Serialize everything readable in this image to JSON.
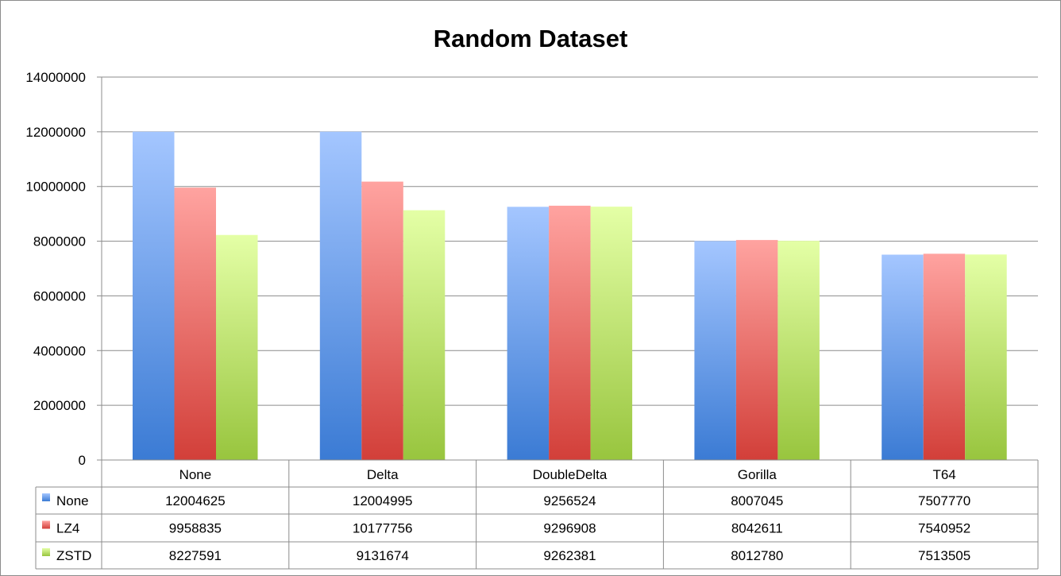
{
  "chart_data": {
    "type": "bar",
    "title": "Random Dataset",
    "xlabel": "",
    "ylabel": "",
    "categories": [
      "None",
      "Delta",
      "DoubleDelta",
      "Gorilla",
      "T64"
    ],
    "series": [
      {
        "name": "None",
        "values": [
          12004625,
          12004995,
          9256524,
          8007045,
          7507770
        ]
      },
      {
        "name": "LZ4",
        "values": [
          9958835,
          10177756,
          9296908,
          8042611,
          7540952
        ]
      },
      {
        "name": "ZSTD",
        "values": [
          8227591,
          9131674,
          9262381,
          8012780,
          7513505
        ]
      }
    ],
    "ylim": [
      0,
      14000000
    ],
    "yticks": [
      0,
      2000000,
      4000000,
      6000000,
      8000000,
      10000000,
      12000000,
      14000000
    ],
    "grid": true,
    "legend": "data-table",
    "colors": {
      "None": {
        "light": "#a4c6ff",
        "dark": "#3b7bd4"
      },
      "LZ4": {
        "light": "#ffa3a0",
        "dark": "#d23f39"
      },
      "ZSTD": {
        "light": "#e4ffa6",
        "dark": "#98c53e"
      }
    }
  }
}
